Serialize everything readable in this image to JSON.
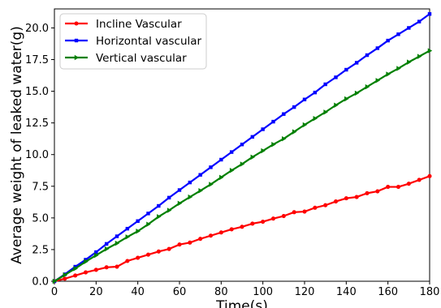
{
  "chart_data": {
    "type": "line",
    "xlabel": "Time(s)",
    "ylabel": "Average weight of leaked water(g)",
    "xlim": [
      0,
      180
    ],
    "ylim": [
      0,
      21.5
    ],
    "xticks": [
      0,
      20,
      40,
      60,
      80,
      100,
      120,
      140,
      160,
      180
    ],
    "yticks": [
      0.0,
      2.5,
      5.0,
      7.5,
      10.0,
      12.5,
      15.0,
      17.5,
      20.0
    ],
    "ytick_labels": [
      "0.0",
      "2.5",
      "5.0",
      "7.5",
      "10.0",
      "12.5",
      "15.0",
      "17.5",
      "20.0"
    ],
    "grid": false,
    "legend_position": "top-left",
    "x": [
      0,
      5,
      10,
      15,
      20,
      25,
      30,
      35,
      40,
      45,
      50,
      55,
      60,
      65,
      70,
      75,
      80,
      85,
      90,
      95,
      100,
      105,
      110,
      115,
      120,
      125,
      130,
      135,
      140,
      145,
      150,
      155,
      160,
      165,
      170,
      175,
      180
    ],
    "series": [
      {
        "name": "Incline Vascular",
        "color": "#ff0000",
        "marker": "circle",
        "values": [
          0.0,
          0.2,
          0.45,
          0.7,
          0.9,
          1.1,
          1.15,
          1.6,
          1.85,
          2.1,
          2.35,
          2.55,
          2.9,
          3.05,
          3.35,
          3.6,
          3.85,
          4.1,
          4.3,
          4.55,
          4.7,
          4.95,
          5.15,
          5.45,
          5.5,
          5.8,
          6.0,
          6.3,
          6.55,
          6.65,
          6.95,
          7.1,
          7.45,
          7.45,
          7.7,
          8.0,
          8.3
        ]
      },
      {
        "name": "Horizontal vascular",
        "color": "#0000ff",
        "marker": "square",
        "values": [
          0.0,
          0.55,
          1.15,
          1.7,
          2.3,
          2.95,
          3.55,
          4.15,
          4.75,
          5.35,
          5.95,
          6.6,
          7.2,
          7.8,
          8.4,
          9.0,
          9.6,
          10.2,
          10.8,
          11.4,
          12.0,
          12.6,
          13.2,
          13.75,
          14.35,
          14.9,
          15.55,
          16.1,
          16.7,
          17.25,
          17.85,
          18.4,
          19.0,
          19.5,
          20.0,
          20.5,
          21.1
        ]
      },
      {
        "name": "Vertical vascular",
        "color": "#008000",
        "marker": "triangle-right",
        "values": [
          0.0,
          0.5,
          1.0,
          1.55,
          2.05,
          2.55,
          3.0,
          3.5,
          3.95,
          4.5,
          5.1,
          5.6,
          6.15,
          6.65,
          7.15,
          7.65,
          8.2,
          8.75,
          9.25,
          9.8,
          10.3,
          10.8,
          11.25,
          11.8,
          12.35,
          12.85,
          13.35,
          13.9,
          14.4,
          14.85,
          15.35,
          15.85,
          16.35,
          16.8,
          17.3,
          17.75,
          18.2
        ]
      }
    ]
  }
}
